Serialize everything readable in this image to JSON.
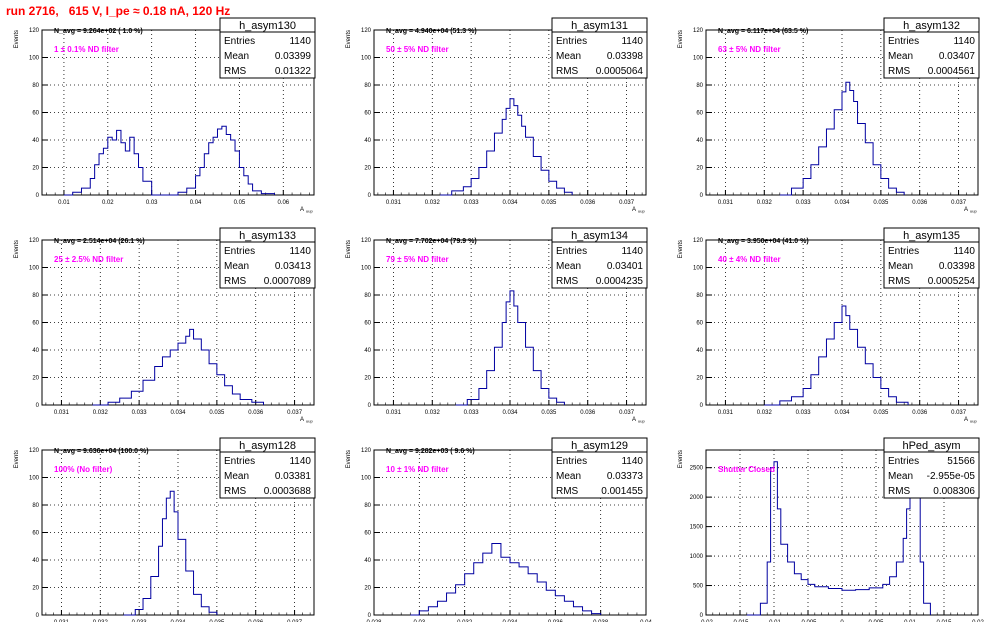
{
  "page": {
    "title": "run 2716,   615 V, I_pe ≈ 0.18 nA, 120 Hz"
  },
  "colors": {
    "histogram": "#0000a0",
    "filter_label": "#ff00ff",
    "title": "#ff0000",
    "grid": "#000000"
  },
  "chart_data": [
    {
      "type": "histogram",
      "name": "h_asym130",
      "nvg": "N_avg = 9.264e+02 ( 1.0 %)",
      "filter": "1 ± 0.1% ND filter",
      "stats": [
        [
          "Entries",
          "1140"
        ],
        [
          "Mean",
          "0.03399"
        ],
        [
          "RMS",
          "0.01322"
        ]
      ],
      "ylabel": "Events",
      "xlabel": "A_uup",
      "xlim": [
        0.005,
        0.067
      ],
      "ylim": [
        0,
        120
      ],
      "xticks": [
        "0.01",
        "0.02",
        "0.03",
        "0.04",
        "0.05",
        "0.06"
      ],
      "xtick_values": [
        0.01,
        0.02,
        0.03,
        0.04,
        0.05,
        0.06
      ],
      "yticks": [
        0,
        20,
        40,
        60,
        80,
        100,
        120
      ],
      "bins": [
        0.01,
        0.012,
        0.014,
        0.016,
        0.017,
        0.018,
        0.019,
        0.02,
        0.021,
        0.022,
        0.023,
        0.024,
        0.025,
        0.026,
        0.027,
        0.028,
        0.03,
        0.036,
        0.038,
        0.04,
        0.041,
        0.042,
        0.043,
        0.044,
        0.045,
        0.046,
        0.047,
        0.048,
        0.049,
        0.05,
        0.051,
        0.052,
        0.053,
        0.055,
        0.058
      ],
      "values": [
        0,
        2,
        5,
        12,
        22,
        30,
        34,
        42,
        40,
        47,
        38,
        32,
        42,
        30,
        20,
        10,
        0,
        2,
        5,
        14,
        20,
        30,
        38,
        42,
        48,
        50,
        44,
        40,
        32,
        20,
        14,
        8,
        3,
        1,
        0
      ]
    },
    {
      "type": "histogram",
      "name": "h_asym131",
      "nvg": "N_avg = 4.940e+04 (51.3 %)",
      "filter": "50 ± 5% ND filter",
      "stats": [
        [
          "Entries",
          "1140"
        ],
        [
          "Mean",
          "0.03398"
        ],
        [
          "RMS",
          "0.0005064"
        ]
      ],
      "ylabel": "Events",
      "xlabel": "A_uup",
      "xlim": [
        0.0305,
        0.0375
      ],
      "ylim": [
        0,
        120
      ],
      "xticks": [
        "0.031",
        "0.032",
        "0.033",
        "0.034",
        "0.035",
        "0.036",
        "0.037"
      ],
      "xtick_values": [
        0.031,
        0.032,
        0.033,
        0.034,
        0.035,
        0.036,
        0.037
      ],
      "yticks": [
        0,
        20,
        40,
        60,
        80,
        100,
        120
      ],
      "bins": [
        0.0322,
        0.0325,
        0.0328,
        0.033,
        0.0332,
        0.0334,
        0.0336,
        0.0338,
        0.0339,
        0.034,
        0.0341,
        0.0342,
        0.0343,
        0.0344,
        0.0346,
        0.0348,
        0.035,
        0.0352,
        0.0354,
        0.0356
      ],
      "values": [
        0,
        3,
        6,
        12,
        20,
        32,
        45,
        55,
        63,
        70,
        65,
        58,
        50,
        42,
        28,
        18,
        10,
        5,
        2,
        0
      ]
    },
    {
      "type": "histogram",
      "name": "h_asym132",
      "nvg": "N_avg = 6.117e+04 (63.5 %)",
      "filter": "63 ± 5% ND filter",
      "stats": [
        [
          "Entries",
          "1140"
        ],
        [
          "Mean",
          "0.03407"
        ],
        [
          "RMS",
          "0.0004561"
        ]
      ],
      "ylabel": "Events",
      "xlabel": "A_uup",
      "xlim": [
        0.0305,
        0.0375
      ],
      "ylim": [
        0,
        120
      ],
      "xticks": [
        "0.031",
        "0.032",
        "0.033",
        "0.034",
        "0.035",
        "0.036",
        "0.037"
      ],
      "xtick_values": [
        0.031,
        0.032,
        0.033,
        0.034,
        0.035,
        0.036,
        0.037
      ],
      "yticks": [
        0,
        20,
        40,
        60,
        80,
        100,
        120
      ],
      "bins": [
        0.0324,
        0.0327,
        0.033,
        0.0332,
        0.0334,
        0.0336,
        0.0338,
        0.034,
        0.0341,
        0.0342,
        0.0343,
        0.0344,
        0.0346,
        0.0348,
        0.035,
        0.0352,
        0.0354,
        0.0356
      ],
      "values": [
        0,
        5,
        12,
        22,
        35,
        48,
        62,
        75,
        82,
        76,
        68,
        52,
        38,
        22,
        12,
        5,
        2,
        0
      ]
    },
    {
      "type": "histogram",
      "name": "h_asym133",
      "nvg": "N_avg = 2.514e+04 (26.1 %)",
      "filter": "25 ± 2.5% ND filter",
      "stats": [
        [
          "Entries",
          "1140"
        ],
        [
          "Mean",
          "0.03413"
        ],
        [
          "RMS",
          "0.0007089"
        ]
      ],
      "ylabel": "Events",
      "xlabel": "A_uup",
      "xlim": [
        0.0305,
        0.0375
      ],
      "ylim": [
        0,
        120
      ],
      "xticks": [
        "0.031",
        "0.032",
        "0.033",
        "0.034",
        "0.035",
        "0.036",
        "0.037"
      ],
      "xtick_values": [
        0.031,
        0.032,
        0.033,
        0.034,
        0.035,
        0.036,
        0.037
      ],
      "yticks": [
        0,
        20,
        40,
        60,
        80,
        100,
        120
      ],
      "bins": [
        0.0318,
        0.0322,
        0.0325,
        0.0328,
        0.0331,
        0.0334,
        0.0336,
        0.0338,
        0.034,
        0.0342,
        0.0343,
        0.0344,
        0.0346,
        0.0348,
        0.035,
        0.0352,
        0.0354,
        0.0356,
        0.0359,
        0.0362
      ],
      "values": [
        0,
        2,
        5,
        10,
        18,
        28,
        35,
        40,
        45,
        50,
        55,
        48,
        40,
        30,
        22,
        14,
        8,
        4,
        2,
        0
      ]
    },
    {
      "type": "histogram",
      "name": "h_asym134",
      "nvg": "N_avg = 7.702e+04 (79.9 %)",
      "filter": "79 ± 5% ND filter",
      "stats": [
        [
          "Entries",
          "1140"
        ],
        [
          "Mean",
          "0.03401"
        ],
        [
          "RMS",
          "0.0004235"
        ]
      ],
      "ylabel": "Events",
      "xlabel": "A_uup",
      "xlim": [
        0.0305,
        0.0375
      ],
      "ylim": [
        0,
        120
      ],
      "xticks": [
        "0.031",
        "0.032",
        "0.033",
        "0.034",
        "0.035",
        "0.036",
        "0.037"
      ],
      "xtick_values": [
        0.031,
        0.032,
        0.033,
        0.034,
        0.035,
        0.036,
        0.037
      ],
      "yticks": [
        0,
        20,
        40,
        60,
        80,
        100,
        120
      ],
      "bins": [
        0.0326,
        0.0329,
        0.0332,
        0.0334,
        0.0336,
        0.0338,
        0.0339,
        0.034,
        0.0341,
        0.0342,
        0.0344,
        0.0346,
        0.0348,
        0.035,
        0.0352,
        0.0354
      ],
      "values": [
        0,
        4,
        12,
        25,
        42,
        60,
        75,
        83,
        72,
        60,
        42,
        25,
        12,
        5,
        2,
        0
      ]
    },
    {
      "type": "histogram",
      "name": "h_asym135",
      "nvg": "N_avg = 3.950e+04 (41.0 %)",
      "filter": "40 ± 4% ND filter",
      "stats": [
        [
          "Entries",
          "1140"
        ],
        [
          "Mean",
          "0.03398"
        ],
        [
          "RMS",
          "0.0005254"
        ]
      ],
      "ylabel": "Events",
      "xlabel": "A_uup",
      "xlim": [
        0.0305,
        0.0375
      ],
      "ylim": [
        0,
        120
      ],
      "xticks": [
        "0.031",
        "0.032",
        "0.033",
        "0.034",
        "0.035",
        "0.036",
        "0.037"
      ],
      "xtick_values": [
        0.031,
        0.032,
        0.033,
        0.034,
        0.035,
        0.036,
        0.037
      ],
      "yticks": [
        0,
        20,
        40,
        60,
        80,
        100,
        120
      ],
      "bins": [
        0.032,
        0.0324,
        0.0327,
        0.033,
        0.0332,
        0.0334,
        0.0336,
        0.0338,
        0.034,
        0.0341,
        0.0342,
        0.0344,
        0.0346,
        0.0348,
        0.035,
        0.0352,
        0.0354,
        0.0357
      ],
      "values": [
        0,
        3,
        6,
        12,
        22,
        35,
        48,
        60,
        72,
        65,
        55,
        42,
        30,
        20,
        12,
        6,
        2,
        0
      ]
    },
    {
      "type": "histogram",
      "name": "h_asym128",
      "nvg": "N_avg = 9.636e+04 (100.0 %)",
      "filter": "100% (No filter)",
      "stats": [
        [
          "Entries",
          "1140"
        ],
        [
          "Mean",
          "0.03381"
        ],
        [
          "RMS",
          "0.0003688"
        ]
      ],
      "ylabel": "Events",
      "xlabel": "A_uup",
      "xlim": [
        0.0305,
        0.0375
      ],
      "ylim": [
        0,
        120
      ],
      "xticks": [
        "0.031",
        "0.032",
        "0.033",
        "0.034",
        "0.035",
        "0.036",
        "0.037"
      ],
      "xtick_values": [
        0.031,
        0.032,
        0.033,
        0.034,
        0.035,
        0.036,
        0.037
      ],
      "yticks": [
        0,
        20,
        40,
        60,
        80,
        100,
        120
      ],
      "bins": [
        0.0326,
        0.0329,
        0.0331,
        0.0333,
        0.0335,
        0.0336,
        0.0337,
        0.0338,
        0.0339,
        0.034,
        0.0342,
        0.0344,
        0.0346,
        0.0348,
        0.035
      ],
      "values": [
        0,
        4,
        12,
        28,
        50,
        70,
        85,
        90,
        75,
        55,
        32,
        15,
        6,
        2,
        0
      ]
    },
    {
      "type": "histogram",
      "name": "h_asym129",
      "nvg": "N_avg = 9.282e+03 ( 9.6 %)",
      "filter": "10 ± 1% ND filter",
      "stats": [
        [
          "Entries",
          "1140"
        ],
        [
          "Mean",
          "0.03373"
        ],
        [
          "RMS",
          "0.001455"
        ]
      ],
      "ylabel": "Events",
      "xlabel": "A_uup",
      "xlim": [
        0.028,
        0.04
      ],
      "ylim": [
        0,
        120
      ],
      "xticks": [
        "0.028",
        "0.03",
        "0.032",
        "0.034",
        "0.036",
        "0.038",
        "0.04"
      ],
      "xtick_values": [
        0.028,
        0.03,
        0.032,
        0.034,
        0.036,
        0.038,
        0.04
      ],
      "yticks": [
        0,
        20,
        40,
        60,
        80,
        100,
        120
      ],
      "bins": [
        0.0296,
        0.03,
        0.0304,
        0.0308,
        0.0312,
        0.0316,
        0.032,
        0.0324,
        0.0328,
        0.0332,
        0.0336,
        0.034,
        0.0344,
        0.0348,
        0.0352,
        0.0356,
        0.036,
        0.0364,
        0.0368,
        0.0372,
        0.0376,
        0.038
      ],
      "values": [
        0,
        3,
        6,
        10,
        16,
        22,
        30,
        38,
        45,
        52,
        42,
        38,
        35,
        30,
        24,
        18,
        14,
        10,
        6,
        3,
        1,
        0
      ]
    },
    {
      "type": "histogram",
      "name": "hPed_asym",
      "nvg": "",
      "filter": "Shutter Closed",
      "stats": [
        [
          "Entries",
          "51566"
        ],
        [
          "Mean",
          "-2.955e-05"
        ],
        [
          "RMS",
          "0.008306"
        ]
      ],
      "ylabel": "Events",
      "xlabel": "A_uup",
      "xlim": [
        -0.02,
        0.02
      ],
      "ylim": [
        0,
        2800
      ],
      "xticks": [
        "-0.02",
        "-0.015",
        "-0.01",
        "-0.005",
        "0",
        "0.005",
        "0.01",
        "0.015",
        "0.02"
      ],
      "xtick_values": [
        -0.02,
        -0.015,
        -0.01,
        -0.005,
        0,
        0.005,
        0.01,
        0.015,
        0.02
      ],
      "yticks": [
        0,
        500,
        1000,
        1500,
        2000,
        2500
      ],
      "bins": [
        -0.014,
        -0.012,
        -0.011,
        -0.0105,
        -0.01,
        -0.0095,
        -0.009,
        -0.008,
        -0.007,
        -0.006,
        -0.005,
        -0.004,
        -0.002,
        0.0,
        0.002,
        0.004,
        0.006,
        0.007,
        0.008,
        0.009,
        0.0095,
        0.01,
        0.0105,
        0.011,
        0.0115,
        0.012,
        0.013
      ],
      "values": [
        0,
        200,
        900,
        2500,
        2600,
        1800,
        1200,
        900,
        700,
        600,
        520,
        480,
        450,
        420,
        430,
        460,
        520,
        650,
        900,
        1300,
        1800,
        2300,
        2600,
        2200,
        900,
        200,
        0
      ]
    }
  ]
}
